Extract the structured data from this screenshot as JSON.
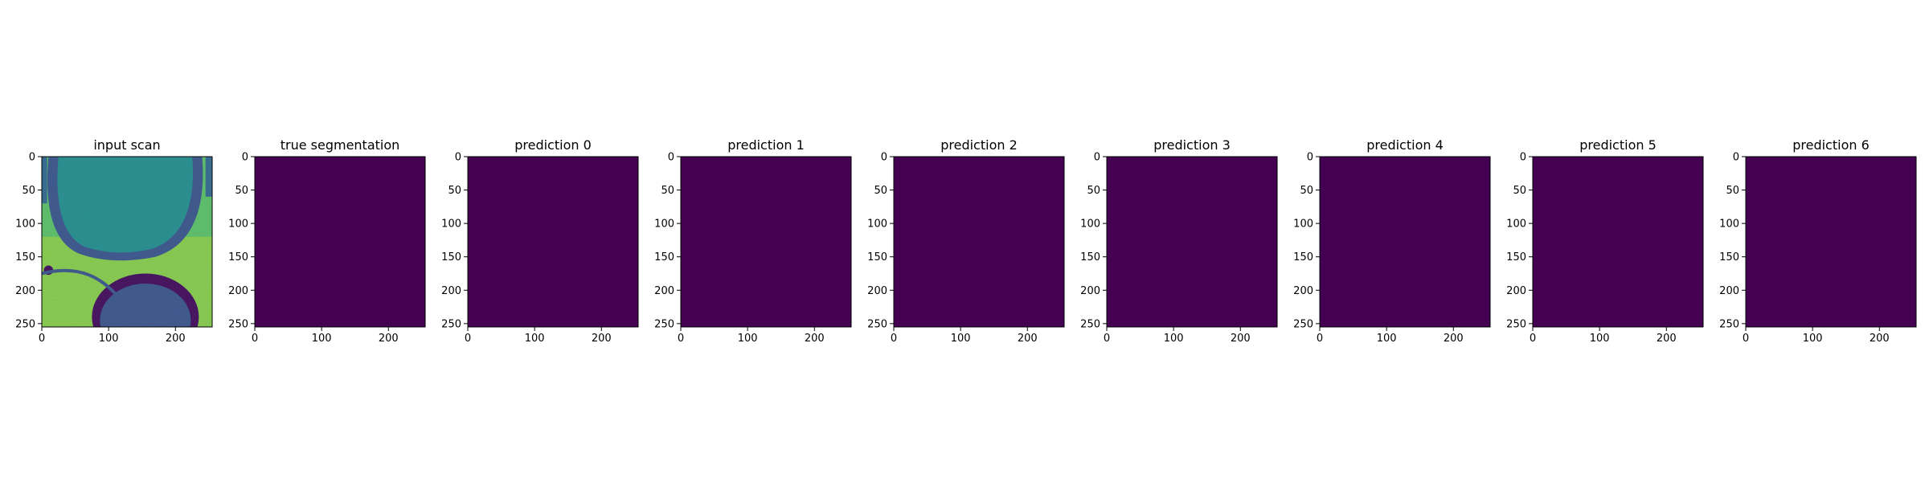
{
  "figure": {
    "panel_count": 9
  },
  "chart_data": [
    {
      "type": "heatmap",
      "title": "input scan",
      "content": "grayscale MRI slice rendered with viridis colormap (bright yellow-green tissue, teal region top-center, dark purple boundaries, rounded structure at bottom)",
      "xlim": [
        0,
        255
      ],
      "ylim": [
        255,
        0
      ],
      "xticks": [
        0,
        100,
        200
      ],
      "yticks": [
        0,
        50,
        100,
        150,
        200,
        250
      ],
      "colormap": "viridis"
    },
    {
      "type": "heatmap",
      "title": "true segmentation",
      "content": "uniform",
      "fill_color": "#440154",
      "xlim": [
        0,
        255
      ],
      "ylim": [
        255,
        0
      ],
      "xticks": [
        0,
        100,
        200
      ],
      "yticks": [
        0,
        50,
        100,
        150,
        200,
        250
      ]
    },
    {
      "type": "heatmap",
      "title": "prediction 0",
      "content": "uniform",
      "fill_color": "#440154",
      "xlim": [
        0,
        255
      ],
      "ylim": [
        255,
        0
      ],
      "xticks": [
        0,
        100,
        200
      ],
      "yticks": [
        0,
        50,
        100,
        150,
        200,
        250
      ]
    },
    {
      "type": "heatmap",
      "title": "prediction 1",
      "content": "uniform",
      "fill_color": "#440154",
      "xlim": [
        0,
        255
      ],
      "ylim": [
        255,
        0
      ],
      "xticks": [
        0,
        100,
        200
      ],
      "yticks": [
        0,
        50,
        100,
        150,
        200,
        250
      ]
    },
    {
      "type": "heatmap",
      "title": "prediction 2",
      "content": "uniform",
      "fill_color": "#440154",
      "xlim": [
        0,
        255
      ],
      "ylim": [
        255,
        0
      ],
      "xticks": [
        0,
        100,
        200
      ],
      "yticks": [
        0,
        50,
        100,
        150,
        200,
        250
      ]
    },
    {
      "type": "heatmap",
      "title": "prediction 3",
      "content": "uniform",
      "fill_color": "#440154",
      "xlim": [
        0,
        255
      ],
      "ylim": [
        255,
        0
      ],
      "xticks": [
        0,
        100,
        200
      ],
      "yticks": [
        0,
        50,
        100,
        150,
        200,
        250
      ]
    },
    {
      "type": "heatmap",
      "title": "prediction 4",
      "content": "uniform",
      "fill_color": "#440154",
      "xlim": [
        0,
        255
      ],
      "ylim": [
        255,
        0
      ],
      "xticks": [
        0,
        100,
        200
      ],
      "yticks": [
        0,
        50,
        100,
        150,
        200,
        250
      ]
    },
    {
      "type": "heatmap",
      "title": "prediction 5",
      "content": "uniform",
      "fill_color": "#440154",
      "xlim": [
        0,
        255
      ],
      "ylim": [
        255,
        0
      ],
      "xticks": [
        0,
        100,
        200
      ],
      "yticks": [
        0,
        50,
        100,
        150,
        200,
        250
      ]
    },
    {
      "type": "heatmap",
      "title": "prediction 6",
      "content": "uniform",
      "fill_color": "#440154",
      "xlim": [
        0,
        255
      ],
      "ylim": [
        255,
        0
      ],
      "xticks": [
        0,
        100,
        200
      ],
      "yticks": [
        0,
        50,
        100,
        150,
        200,
        250
      ]
    }
  ]
}
